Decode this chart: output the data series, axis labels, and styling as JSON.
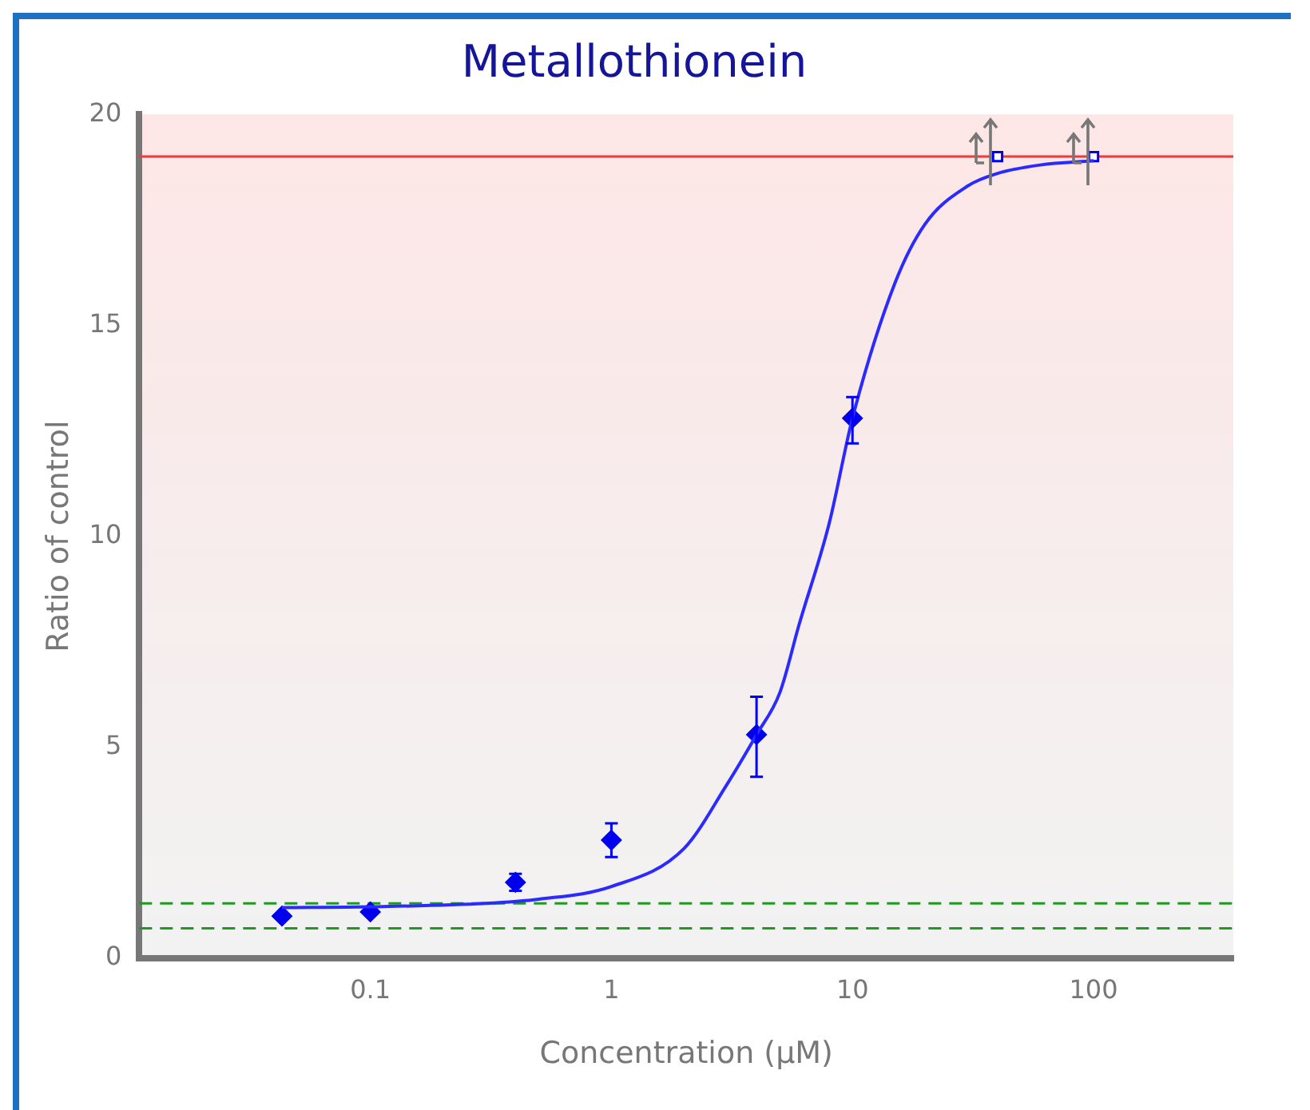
{
  "chart_data": {
    "type": "scatter",
    "title": "Metallothionein",
    "xlabel": "Concentration (μM)",
    "ylabel": "Ratio of control",
    "log": "x",
    "xlim": [
      0.011,
      380
    ],
    "xticks": [
      0.1,
      1,
      10,
      100
    ],
    "ylim": [
      0,
      20
    ],
    "yticks": [
      0,
      5,
      10,
      15,
      20
    ],
    "grid": false,
    "legend": false,
    "series": [
      {
        "type": "line",
        "color": "#2b2bff",
        "marker": "none",
        "x": [
          0.043,
          0.1,
          0.3,
          0.5,
          1,
          2,
          3,
          4,
          5,
          6,
          8,
          10,
          15,
          20,
          30,
          40,
          60,
          100
        ],
        "values": [
          1.2,
          1.22,
          1.3,
          1.4,
          1.7,
          2.6,
          4.1,
          5.3,
          6.3,
          7.9,
          10.3,
          12.8,
          16,
          17.4,
          18.3,
          18.6,
          18.8,
          18.9
        ]
      },
      {
        "color": "#0000ee",
        "marker": "diamond",
        "x": [
          0.043,
          0.1,
          0.4,
          1,
          4,
          10
        ],
        "values": [
          1,
          1.1,
          1.8,
          2.8,
          5.3,
          12.8
        ],
        "errors": [
          null,
          null,
          0.2,
          0.4,
          [
            4.3,
            6.2
          ],
          [
            12.2,
            13.3
          ]
        ]
      },
      {
        "color": "#0000ee",
        "marker": "square",
        "x": [
          40,
          100
        ],
        "values": [
          19,
          19
        ]
      }
    ],
    "ref_lines": [
      {
        "axis": "y",
        "value": 19,
        "color": "#ee3b3b",
        "line_style": "solid"
      },
      {
        "axis": "y",
        "value": 1.3,
        "color": "#1f9a1f",
        "line_style": "dashed"
      },
      {
        "axis": "y",
        "value": 0.71,
        "color": "#1f9a1f",
        "line_style": "dashed"
      }
    ]
  }
}
